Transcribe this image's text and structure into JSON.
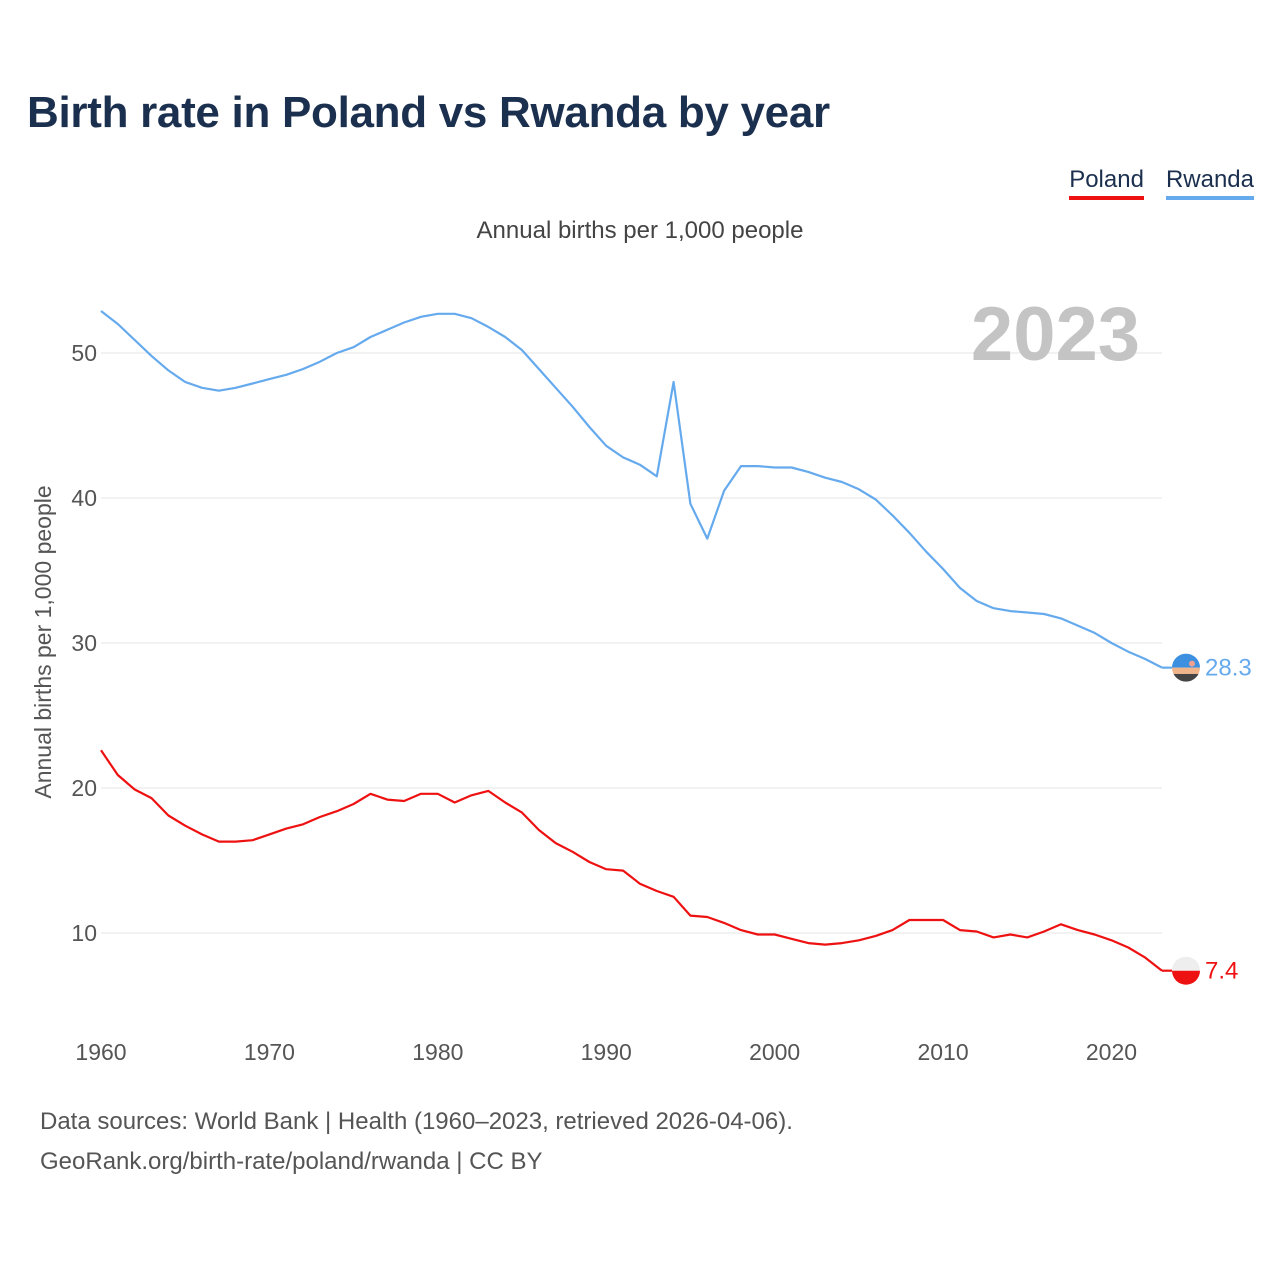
{
  "title": "Birth rate in Poland vs Rwanda by year",
  "subtitle": "Annual births per 1,000 people",
  "legend": [
    {
      "label": "Poland",
      "color": "#ee1111"
    },
    {
      "label": "Rwanda",
      "color": "#66aaee"
    }
  ],
  "year_badge": "2023",
  "source_line1": "Data sources: World Bank | Health (1960–2023, retrieved 2026-04-06).",
  "source_line2": "GeoRank.org/birth-rate/poland/rwanda | CC BY",
  "chart_data": {
    "type": "line",
    "title": "Birth rate in Poland vs Rwanda by year",
    "xlabel": "",
    "ylabel": "Annual births per 1,000 people",
    "xlim": [
      1960,
      2023
    ],
    "ylim": [
      5,
      55
    ],
    "y_ticks": [
      10,
      20,
      30,
      40,
      50
    ],
    "x_ticks": [
      1960,
      1970,
      1980,
      1990,
      2000,
      2010,
      2020
    ],
    "grid": true,
    "x": [
      1960,
      1961,
      1962,
      1963,
      1964,
      1965,
      1966,
      1967,
      1968,
      1969,
      1970,
      1971,
      1972,
      1973,
      1974,
      1975,
      1976,
      1977,
      1978,
      1979,
      1980,
      1981,
      1982,
      1983,
      1984,
      1985,
      1986,
      1987,
      1988,
      1989,
      1990,
      1991,
      1992,
      1993,
      1994,
      1995,
      1996,
      1997,
      1998,
      1999,
      2000,
      2001,
      2002,
      2003,
      2004,
      2005,
      2006,
      2007,
      2008,
      2009,
      2010,
      2011,
      2012,
      2013,
      2014,
      2015,
      2016,
      2017,
      2018,
      2019,
      2020,
      2021,
      2022,
      2023
    ],
    "series": [
      {
        "name": "Poland",
        "color": "#ee1111",
        "end_label": "7.4",
        "values": [
          22.6,
          20.9,
          19.9,
          19.3,
          18.1,
          17.4,
          16.8,
          16.3,
          16.3,
          16.4,
          16.8,
          17.2,
          17.5,
          18.0,
          18.4,
          18.9,
          19.6,
          19.2,
          19.1,
          19.6,
          19.6,
          19.0,
          19.5,
          19.8,
          19.0,
          18.3,
          17.1,
          16.2,
          15.6,
          14.9,
          14.4,
          14.3,
          13.4,
          12.9,
          12.5,
          11.2,
          11.1,
          10.7,
          10.2,
          9.9,
          9.9,
          9.6,
          9.3,
          9.2,
          9.3,
          9.5,
          9.8,
          10.2,
          10.9,
          10.9,
          10.9,
          10.2,
          10.1,
          9.7,
          9.9,
          9.7,
          10.1,
          10.6,
          10.2,
          9.9,
          9.5,
          9.0,
          8.3,
          7.4
        ]
      },
      {
        "name": "Rwanda",
        "color": "#66aaee",
        "end_label": "28.3",
        "values": [
          52.9,
          52.0,
          50.9,
          49.8,
          48.8,
          48.0,
          47.6,
          47.4,
          47.6,
          47.9,
          48.2,
          48.5,
          48.9,
          49.4,
          50.0,
          50.4,
          51.1,
          51.6,
          52.1,
          52.5,
          52.7,
          52.7,
          52.4,
          51.8,
          51.1,
          50.2,
          48.9,
          47.6,
          46.3,
          44.9,
          43.6,
          42.8,
          42.3,
          41.5,
          48.0,
          39.6,
          37.2,
          40.5,
          42.2,
          42.2,
          42.1,
          42.1,
          41.8,
          41.4,
          41.1,
          40.6,
          39.9,
          38.8,
          37.6,
          36.3,
          35.1,
          33.8,
          32.9,
          32.4,
          32.2,
          32.1,
          32.0,
          31.7,
          31.2,
          30.7,
          30.0,
          29.4,
          28.9,
          28.3
        ]
      }
    ]
  }
}
